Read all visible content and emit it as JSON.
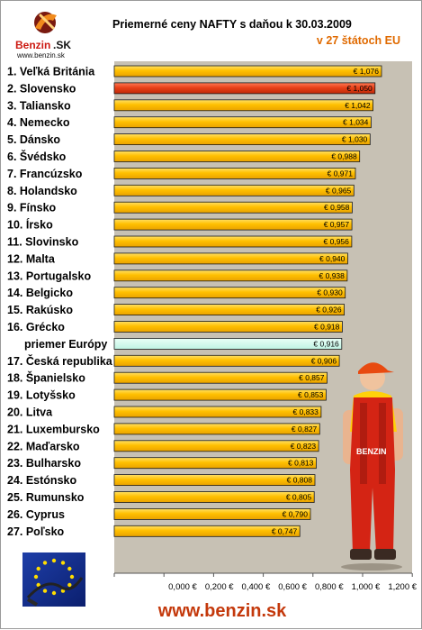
{
  "logo": {
    "brand": "Benzin",
    "suffix": ".SK",
    "url": "www.benzin.sk"
  },
  "footer": {
    "url": "www.benzin.sk"
  },
  "colors": {
    "bar": "#ffc000",
    "bar_highlight": "#e84018",
    "bar_average": "#ccffee",
    "plot_background": "#c7c1b4",
    "highlight_label": "#e84018",
    "average_label": "#5aa6d6",
    "subtitle": "#e06a00",
    "footer": "#c4390c"
  },
  "chart_data": {
    "type": "bar",
    "orientation": "horizontal",
    "title": "Priemerné ceny NAFTY s daňou k 30.03.2009",
    "subtitle": "v 27 štátoch EU",
    "categories": [
      "1. Veľká Británia",
      "2. Slovensko",
      "3. Taliansko",
      "4. Nemecko",
      "5. Dánsko",
      "6. Švédsko",
      "7. Francúzsko",
      "8. Holandsko",
      "9. Fínsko",
      "10. Írsko",
      "11. Slovinsko",
      "12. Malta",
      "13. Portugalsko",
      "14. Belgicko",
      "15. Rakúsko",
      "16. Grécko",
      "priemer Európy",
      "17. Česká republika",
      "18. Španielsko",
      "19. Lotyšsko",
      "20. Litva",
      "21. Luxembursko",
      "22. Maďarsko",
      "23. Bulharsko",
      "24. Estónsko",
      "25. Rumunsko",
      "26. Cyprus",
      "27. Poľsko"
    ],
    "values": [
      1.076,
      1.05,
      1.042,
      1.034,
      1.03,
      0.988,
      0.971,
      0.965,
      0.958,
      0.957,
      0.956,
      0.94,
      0.938,
      0.93,
      0.926,
      0.918,
      0.916,
      0.906,
      0.857,
      0.853,
      0.833,
      0.827,
      0.823,
      0.813,
      0.808,
      0.805,
      0.79,
      0.747
    ],
    "value_labels": [
      "€ 1,076",
      "€ 1,050",
      "€ 1,042",
      "€ 1,034",
      "€ 1,030",
      "€ 0,988",
      "€ 0,971",
      "€ 0,965",
      "€ 0,958",
      "€ 0,957",
      "€ 0,956",
      "€ 0,940",
      "€ 0,938",
      "€ 0,930",
      "€ 0,926",
      "€ 0,918",
      "€ 0,916",
      "€ 0,906",
      "€ 0,857",
      "€ 0,853",
      "€ 0,833",
      "€ 0,827",
      "€ 0,823",
      "€ 0,813",
      "€ 0,808",
      "€ 0,805",
      "€ 0,790",
      "€ 0,747"
    ],
    "highlight_index": 1,
    "average_index": 16,
    "xlim": [
      0,
      1.2
    ],
    "xticks": [
      0,
      0.2,
      0.4,
      0.6,
      0.8,
      1.0,
      1.2
    ],
    "xtick_labels": [
      "0,000 €",
      "0,200 €",
      "0,400 €",
      "0,600 €",
      "0,800 €",
      "1,000 €",
      "1,200 €"
    ],
    "grid": false,
    "legend": "none"
  }
}
